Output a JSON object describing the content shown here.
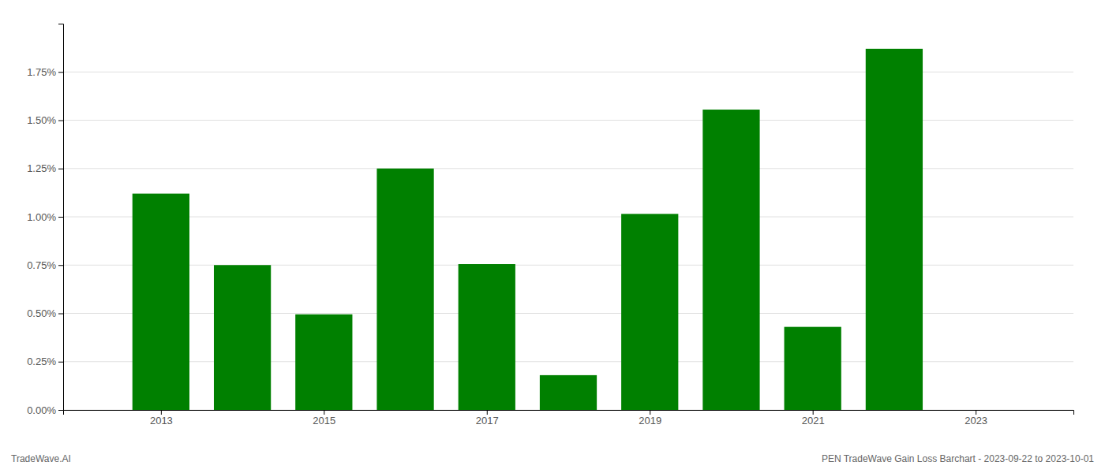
{
  "chart_data": {
    "type": "bar",
    "x": [
      2013,
      2014,
      2015,
      2016,
      2017,
      2018,
      2019,
      2020,
      2021,
      2022
    ],
    "values": [
      0.0112,
      0.0075,
      0.00495,
      0.0125,
      0.00755,
      0.0018,
      0.01015,
      0.01555,
      0.0043,
      0.0187
    ],
    "color": "#008000",
    "xlim": [
      2011.8,
      2024.2
    ],
    "xticks": [
      2013,
      2015,
      2017,
      2019,
      2021,
      2023
    ],
    "ylim": [
      0.0,
      0.02
    ],
    "yticks": [
      {
        "value": 0.0,
        "label": "0.00%"
      },
      {
        "value": 0.0025,
        "label": "0.25%"
      },
      {
        "value": 0.005,
        "label": "0.50%"
      },
      {
        "value": 0.0075,
        "label": "0.75%"
      },
      {
        "value": 0.01,
        "label": "1.00%"
      },
      {
        "value": 0.0125,
        "label": "1.25%"
      },
      {
        "value": 0.015,
        "label": "1.50%"
      },
      {
        "value": 0.0175,
        "label": "1.75%"
      }
    ],
    "grid": true,
    "annotations": [
      "TradeWave.AI",
      "PEN TradeWave Gain Loss Barchart - 2023-09-22 to 2023-10-01"
    ]
  }
}
